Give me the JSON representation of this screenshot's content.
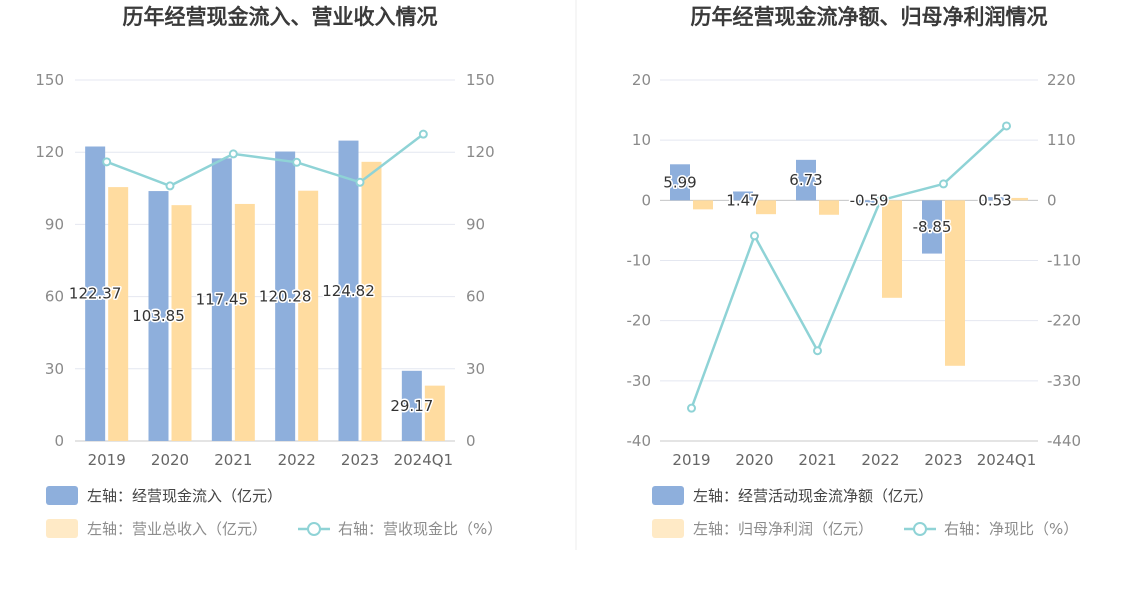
{
  "chart_data": [
    {
      "type": "bar",
      "title": "历年经营现金流入、营业收入情况",
      "categories": [
        "2019",
        "2020",
        "2021",
        "2022",
        "2023",
        "2024Q1"
      ],
      "left_axis": {
        "ylim": [
          0,
          150
        ],
        "ticks": [
          "0",
          "30",
          "60",
          "90",
          "120",
          "150"
        ]
      },
      "right_axis": {
        "ylim": [
          0,
          150
        ],
        "ticks": [
          "0",
          "30",
          "60",
          "90",
          "120",
          "150"
        ]
      },
      "grid": true,
      "legend_position": "bottom-left",
      "series": [
        {
          "name": "左轴：经营现金流入（亿元）",
          "kind": "bar",
          "axis": "left",
          "color": "#8eafdc",
          "values": [
            122.37,
            103.85,
            117.45,
            120.28,
            124.82,
            29.17
          ],
          "labels": [
            "122.37",
            "103.85",
            "117.45",
            "120.28",
            "124.82",
            "29.17"
          ]
        },
        {
          "name": "左轴：营业总收入（亿元）",
          "kind": "bar",
          "axis": "left",
          "color": "#ffdca0",
          "values": [
            105.5,
            98.0,
            98.5,
            104.0,
            116.0,
            23.0
          ]
        },
        {
          "name": "右轴：营收现金比（%）",
          "kind": "line",
          "axis": "right",
          "color": "#8fd3d6",
          "values": [
            116.0,
            106.0,
            119.3,
            115.8,
            107.5,
            127.5
          ]
        }
      ]
    },
    {
      "type": "bar",
      "title": "历年经营现金流净额、归母净利润情况",
      "categories": [
        "2019",
        "2020",
        "2021",
        "2022",
        "2023",
        "2024Q1"
      ],
      "left_axis": {
        "ylim": [
          -40,
          20
        ],
        "ticks": [
          "-40",
          "-30",
          "-20",
          "-10",
          "0",
          "10",
          "20"
        ]
      },
      "right_axis": {
        "ylim": [
          -440,
          220
        ],
        "ticks": [
          "-440",
          "-330",
          "-220",
          "-110",
          "0",
          "110",
          "220"
        ]
      },
      "grid": true,
      "legend_position": "bottom-left",
      "series": [
        {
          "name": "左轴：经营活动现金流净额（亿元）",
          "kind": "bar",
          "axis": "left",
          "color": "#8eafdc",
          "values": [
            5.99,
            1.47,
            6.73,
            -0.59,
            -8.85,
            0.53
          ],
          "labels": [
            "5.99",
            "1.47",
            "6.73",
            "-0.59",
            "-8.85",
            "0.53"
          ]
        },
        {
          "name": "左轴：归母净利润（亿元）",
          "kind": "bar",
          "axis": "left",
          "color": "#ffdca0",
          "values": [
            -1.5,
            -2.3,
            -2.4,
            -16.2,
            -27.5,
            0.4
          ]
        },
        {
          "name": "右轴：净现比（%）",
          "kind": "line",
          "axis": "right",
          "color": "#8fd3d6",
          "values": [
            -380,
            -65,
            -275,
            0,
            30,
            136
          ]
        }
      ]
    }
  ]
}
